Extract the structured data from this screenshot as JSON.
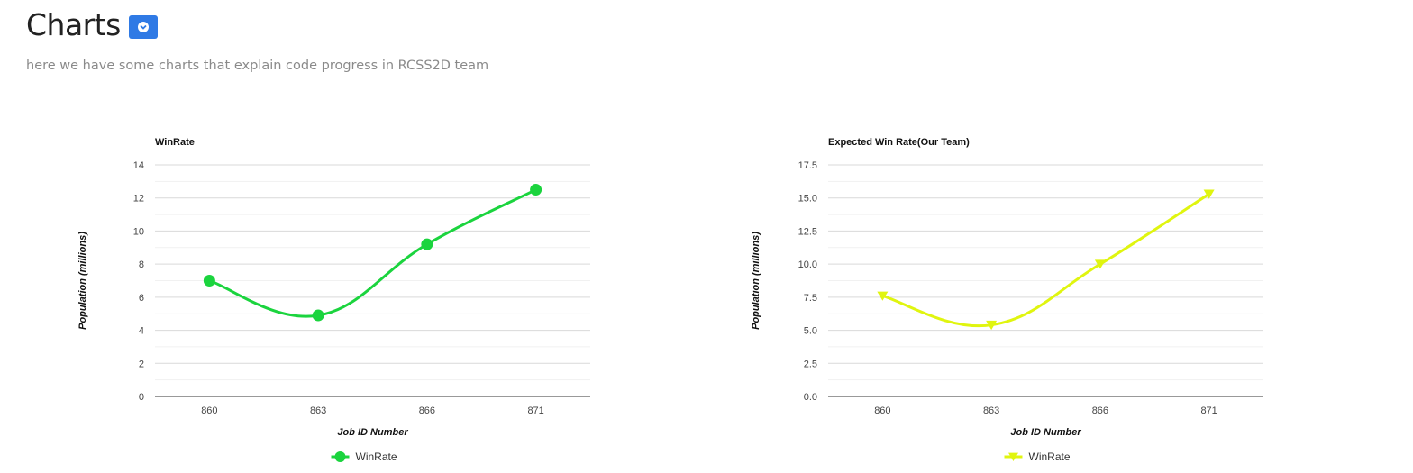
{
  "header": {
    "title": "Charts",
    "toggle_icon": "chevron-down-icon",
    "subtitle": "here we have some charts that explain code progress in RCSS2D team"
  },
  "chart_data": [
    {
      "type": "line",
      "title": "WinRate",
      "xlabel": "Job ID Number",
      "ylabel": "Population (millions)",
      "categories": [
        "860",
        "863",
        "866",
        "871"
      ],
      "yticks": [
        "0",
        "2",
        "4",
        "6",
        "8",
        "10",
        "12",
        "14"
      ],
      "ylim": [
        0,
        14
      ],
      "grid": true,
      "curve": "smooth",
      "marker": "circle",
      "legend_position": "bottom",
      "color": "#1bd43e",
      "series": [
        {
          "name": "WinRate",
          "values": [
            7.0,
            4.9,
            9.2,
            12.5
          ]
        }
      ]
    },
    {
      "type": "line",
      "title": "Expected Win Rate(Our Team)",
      "xlabel": "Job ID Number",
      "ylabel": "Population (millions)",
      "categories": [
        "860",
        "863",
        "866",
        "871"
      ],
      "yticks": [
        "0.0",
        "2.5",
        "5.0",
        "7.5",
        "10.0",
        "12.5",
        "15.0",
        "17.5"
      ],
      "ylim": [
        0,
        17.5
      ],
      "grid": true,
      "curve": "smooth",
      "marker": "triangle-down",
      "legend_position": "bottom",
      "color": "#e0f50f",
      "series": [
        {
          "name": "WinRate",
          "values": [
            7.6,
            5.4,
            10.0,
            15.3
          ]
        }
      ]
    }
  ]
}
